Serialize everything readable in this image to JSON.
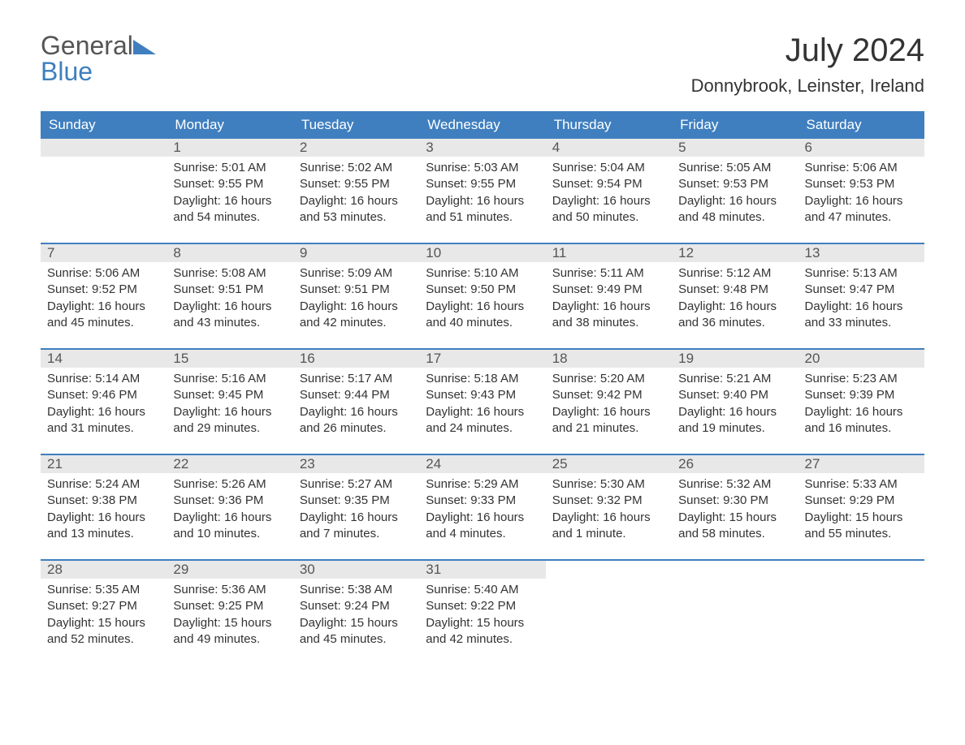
{
  "logo": {
    "line1": "General",
    "line2": "Blue"
  },
  "title": "July 2024",
  "subtitle": "Donnybrook, Leinster, Ireland",
  "colors": {
    "accent": "#3f7fbf",
    "header_text": "#ffffff",
    "daynum_bg": "#e8e8e8",
    "body_text": "#333333",
    "logo_grey": "#555555"
  },
  "weekdays": [
    "Sunday",
    "Monday",
    "Tuesday",
    "Wednesday",
    "Thursday",
    "Friday",
    "Saturday"
  ],
  "start_offset": 1,
  "days": [
    {
      "n": "1",
      "sunrise": "Sunrise: 5:01 AM",
      "sunset": "Sunset: 9:55 PM",
      "daylight": "Daylight: 16 hours and 54 minutes."
    },
    {
      "n": "2",
      "sunrise": "Sunrise: 5:02 AM",
      "sunset": "Sunset: 9:55 PM",
      "daylight": "Daylight: 16 hours and 53 minutes."
    },
    {
      "n": "3",
      "sunrise": "Sunrise: 5:03 AM",
      "sunset": "Sunset: 9:55 PM",
      "daylight": "Daylight: 16 hours and 51 minutes."
    },
    {
      "n": "4",
      "sunrise": "Sunrise: 5:04 AM",
      "sunset": "Sunset: 9:54 PM",
      "daylight": "Daylight: 16 hours and 50 minutes."
    },
    {
      "n": "5",
      "sunrise": "Sunrise: 5:05 AM",
      "sunset": "Sunset: 9:53 PM",
      "daylight": "Daylight: 16 hours and 48 minutes."
    },
    {
      "n": "6",
      "sunrise": "Sunrise: 5:06 AM",
      "sunset": "Sunset: 9:53 PM",
      "daylight": "Daylight: 16 hours and 47 minutes."
    },
    {
      "n": "7",
      "sunrise": "Sunrise: 5:06 AM",
      "sunset": "Sunset: 9:52 PM",
      "daylight": "Daylight: 16 hours and 45 minutes."
    },
    {
      "n": "8",
      "sunrise": "Sunrise: 5:08 AM",
      "sunset": "Sunset: 9:51 PM",
      "daylight": "Daylight: 16 hours and 43 minutes."
    },
    {
      "n": "9",
      "sunrise": "Sunrise: 5:09 AM",
      "sunset": "Sunset: 9:51 PM",
      "daylight": "Daylight: 16 hours and 42 minutes."
    },
    {
      "n": "10",
      "sunrise": "Sunrise: 5:10 AM",
      "sunset": "Sunset: 9:50 PM",
      "daylight": "Daylight: 16 hours and 40 minutes."
    },
    {
      "n": "11",
      "sunrise": "Sunrise: 5:11 AM",
      "sunset": "Sunset: 9:49 PM",
      "daylight": "Daylight: 16 hours and 38 minutes."
    },
    {
      "n": "12",
      "sunrise": "Sunrise: 5:12 AM",
      "sunset": "Sunset: 9:48 PM",
      "daylight": "Daylight: 16 hours and 36 minutes."
    },
    {
      "n": "13",
      "sunrise": "Sunrise: 5:13 AM",
      "sunset": "Sunset: 9:47 PM",
      "daylight": "Daylight: 16 hours and 33 minutes."
    },
    {
      "n": "14",
      "sunrise": "Sunrise: 5:14 AM",
      "sunset": "Sunset: 9:46 PM",
      "daylight": "Daylight: 16 hours and 31 minutes."
    },
    {
      "n": "15",
      "sunrise": "Sunrise: 5:16 AM",
      "sunset": "Sunset: 9:45 PM",
      "daylight": "Daylight: 16 hours and 29 minutes."
    },
    {
      "n": "16",
      "sunrise": "Sunrise: 5:17 AM",
      "sunset": "Sunset: 9:44 PM",
      "daylight": "Daylight: 16 hours and 26 minutes."
    },
    {
      "n": "17",
      "sunrise": "Sunrise: 5:18 AM",
      "sunset": "Sunset: 9:43 PM",
      "daylight": "Daylight: 16 hours and 24 minutes."
    },
    {
      "n": "18",
      "sunrise": "Sunrise: 5:20 AM",
      "sunset": "Sunset: 9:42 PM",
      "daylight": "Daylight: 16 hours and 21 minutes."
    },
    {
      "n": "19",
      "sunrise": "Sunrise: 5:21 AM",
      "sunset": "Sunset: 9:40 PM",
      "daylight": "Daylight: 16 hours and 19 minutes."
    },
    {
      "n": "20",
      "sunrise": "Sunrise: 5:23 AM",
      "sunset": "Sunset: 9:39 PM",
      "daylight": "Daylight: 16 hours and 16 minutes."
    },
    {
      "n": "21",
      "sunrise": "Sunrise: 5:24 AM",
      "sunset": "Sunset: 9:38 PM",
      "daylight": "Daylight: 16 hours and 13 minutes."
    },
    {
      "n": "22",
      "sunrise": "Sunrise: 5:26 AM",
      "sunset": "Sunset: 9:36 PM",
      "daylight": "Daylight: 16 hours and 10 minutes."
    },
    {
      "n": "23",
      "sunrise": "Sunrise: 5:27 AM",
      "sunset": "Sunset: 9:35 PM",
      "daylight": "Daylight: 16 hours and 7 minutes."
    },
    {
      "n": "24",
      "sunrise": "Sunrise: 5:29 AM",
      "sunset": "Sunset: 9:33 PM",
      "daylight": "Daylight: 16 hours and 4 minutes."
    },
    {
      "n": "25",
      "sunrise": "Sunrise: 5:30 AM",
      "sunset": "Sunset: 9:32 PM",
      "daylight": "Daylight: 16 hours and 1 minute."
    },
    {
      "n": "26",
      "sunrise": "Sunrise: 5:32 AM",
      "sunset": "Sunset: 9:30 PM",
      "daylight": "Daylight: 15 hours and 58 minutes."
    },
    {
      "n": "27",
      "sunrise": "Sunrise: 5:33 AM",
      "sunset": "Sunset: 9:29 PM",
      "daylight": "Daylight: 15 hours and 55 minutes."
    },
    {
      "n": "28",
      "sunrise": "Sunrise: 5:35 AM",
      "sunset": "Sunset: 9:27 PM",
      "daylight": "Daylight: 15 hours and 52 minutes."
    },
    {
      "n": "29",
      "sunrise": "Sunrise: 5:36 AM",
      "sunset": "Sunset: 9:25 PM",
      "daylight": "Daylight: 15 hours and 49 minutes."
    },
    {
      "n": "30",
      "sunrise": "Sunrise: 5:38 AM",
      "sunset": "Sunset: 9:24 PM",
      "daylight": "Daylight: 15 hours and 45 minutes."
    },
    {
      "n": "31",
      "sunrise": "Sunrise: 5:40 AM",
      "sunset": "Sunset: 9:22 PM",
      "daylight": "Daylight: 15 hours and 42 minutes."
    }
  ]
}
